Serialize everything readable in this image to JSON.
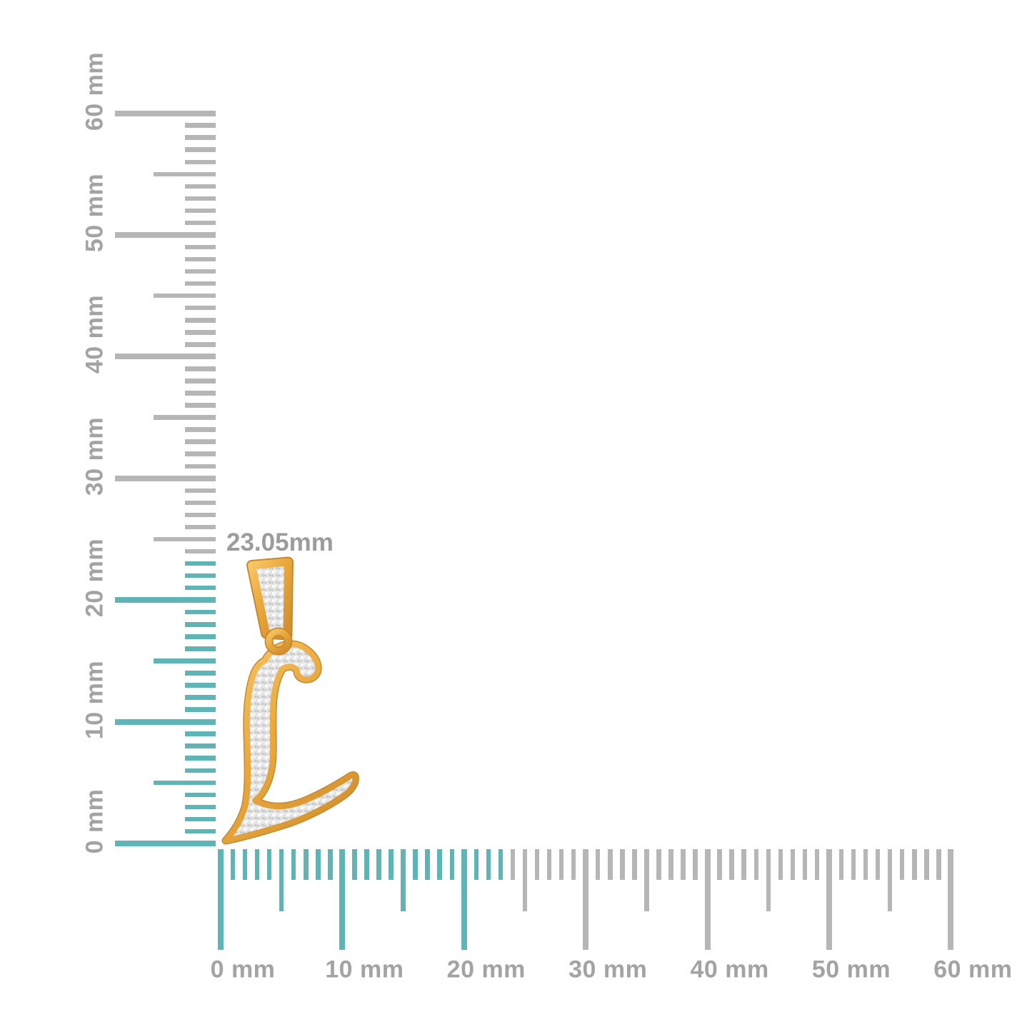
{
  "page": {
    "background": "#ffffff"
  },
  "dimension_annotation": {
    "text": "23.05mm",
    "color": "#9c9c9c"
  },
  "rulers": {
    "unit": "mm",
    "tick_color": "#b6b6b6",
    "highlight_color": "#5fb5b5",
    "label_color": "#a3a3a3",
    "vertical": {
      "min_mm": 0,
      "max_mm": 60,
      "minor_step_mm": 1,
      "label_step_mm": 10,
      "highlight_from_mm": 0,
      "highlight_to_mm": 23,
      "labels": [
        "0 mm",
        "10 mm",
        "20 mm",
        "30 mm",
        "40 mm",
        "50 mm",
        "60 mm"
      ]
    },
    "horizontal": {
      "min_mm": 0,
      "max_mm": 60,
      "minor_step_mm": 1,
      "label_step_mm": 10,
      "highlight_from_mm": 0,
      "highlight_to_mm": 23,
      "labels": [
        "0 mm",
        "10 mm",
        "20 mm",
        "30 mm",
        "40 mm",
        "50 mm",
        "60 mm"
      ]
    }
  },
  "pendant": {
    "kind": "diamond-pave-initial-letter-L-pendant-with-bail",
    "measured_height": "23.05mm",
    "gold_color": "#eaa93f",
    "gold_dark_color": "#c8882e",
    "gold_light_color": "#f7c766",
    "pave_color": "#e4e4e4"
  }
}
